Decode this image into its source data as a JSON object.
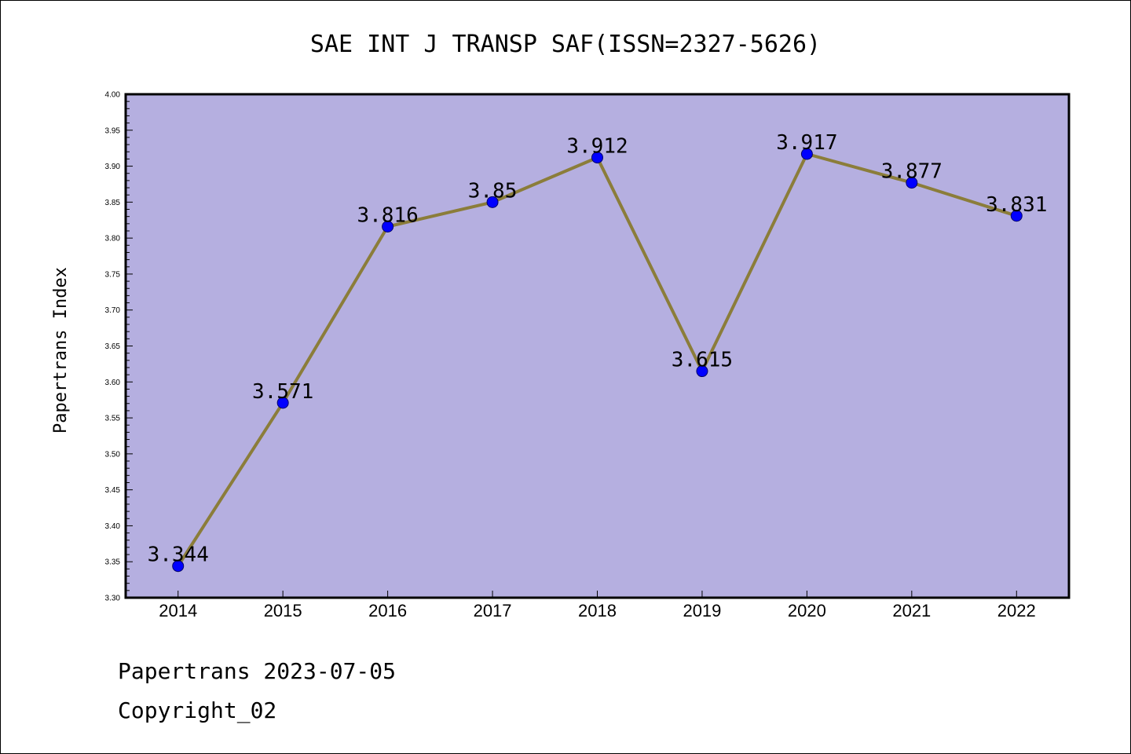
{
  "chart_data": {
    "type": "line",
    "title": "SAE INT J TRANSP SAF(ISSN=2327-5626)",
    "xlabel": "",
    "ylabel": "Papertrans Index",
    "categories": [
      "2014",
      "2015",
      "2016",
      "2017",
      "2018",
      "2019",
      "2020",
      "2021",
      "2022"
    ],
    "values": [
      3.344,
      3.571,
      3.816,
      3.85,
      3.912,
      3.615,
      3.917,
      3.877,
      3.831
    ],
    "data_labels": [
      "3.344",
      "3.571",
      "3.816",
      "3.85",
      "3.912",
      "3.615",
      "3.917",
      "3.877",
      "3.831"
    ],
    "ylim": [
      3.3,
      4.0
    ],
    "yticks": [
      "3.30",
      "3.35",
      "3.40",
      "3.45",
      "3.50",
      "3.55",
      "3.60",
      "3.65",
      "3.70",
      "3.75",
      "3.80",
      "3.85",
      "3.90",
      "3.95",
      "4.00"
    ],
    "grid": false,
    "colors": {
      "plot_background": "#b5afe0",
      "line": "#8b7d3a",
      "marker": "#0000ff"
    }
  },
  "footer": {
    "line1": "Papertrans 2023-07-05",
    "line2": "Copyright_02"
  }
}
